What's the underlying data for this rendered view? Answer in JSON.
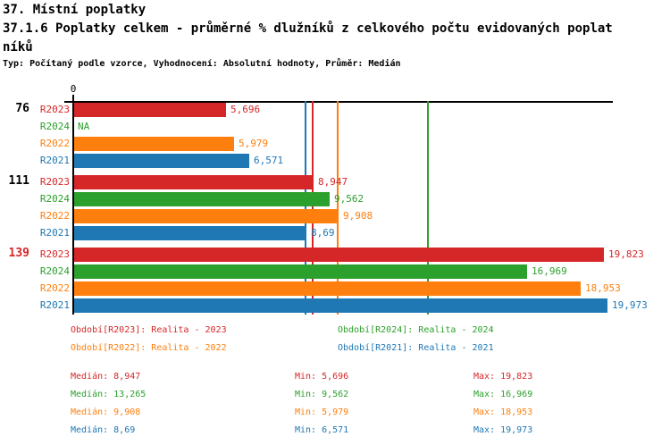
{
  "header": {
    "line1": "37. Místní poplatky",
    "line2": "37.1.6 Poplatky celkem - průměrné % dlužníků z celkového počtu evidovaných poplat",
    "line3": "níků",
    "meta": "Typ: Počítaný podle vzorce, Vyhodnocení: Absolutní hodnoty, Průměr: Medián"
  },
  "colors": {
    "R2023": "#d62728",
    "R2024": "#2ca02c",
    "R2022": "#ff7f0e",
    "R2021": "#1f77b4",
    "axis": "#000000",
    "group_label": "#000000",
    "group_label_highlight": "#d62728"
  },
  "chart_data": {
    "type": "bar",
    "orientation": "horizontal",
    "title": "37.1.6 Poplatky celkem - průměrné % dlužníků z celkového počtu evidovaných poplatníků",
    "xlabel": "",
    "ylabel": "",
    "xlim": [
      0,
      20.1
    ],
    "x_origin_tick_label": "0",
    "grid": false,
    "missing_value_label": "NA",
    "series_order": [
      "R2023",
      "R2024",
      "R2022",
      "R2021"
    ],
    "groups": [
      {
        "label": "76",
        "highlight": false,
        "bars": [
          {
            "series": "R2023",
            "value": 5.696,
            "value_label": "5,696"
          },
          {
            "series": "R2024",
            "value": null,
            "value_label": "NA"
          },
          {
            "series": "R2022",
            "value": 5.979,
            "value_label": "5,979"
          },
          {
            "series": "R2021",
            "value": 6.571,
            "value_label": "6,571"
          }
        ]
      },
      {
        "label": "111",
        "highlight": false,
        "bars": [
          {
            "series": "R2023",
            "value": 8.947,
            "value_label": "8,947"
          },
          {
            "series": "R2024",
            "value": 9.562,
            "value_label": "9,562"
          },
          {
            "series": "R2022",
            "value": 9.908,
            "value_label": "9,908"
          },
          {
            "series": "R2021",
            "value": 8.69,
            "value_label": "8,69"
          }
        ]
      },
      {
        "label": "139",
        "highlight": true,
        "bars": [
          {
            "series": "R2023",
            "value": 19.823,
            "value_label": "19,823"
          },
          {
            "series": "R2024",
            "value": 16.969,
            "value_label": "16,969"
          },
          {
            "series": "R2022",
            "value": 18.953,
            "value_label": "18,953"
          },
          {
            "series": "R2021",
            "value": 19.973,
            "value_label": "19,973"
          }
        ]
      }
    ],
    "median_lines": [
      {
        "series": "R2023",
        "value": 8.947
      },
      {
        "series": "R2024",
        "value": 13.265
      },
      {
        "series": "R2022",
        "value": 9.908
      },
      {
        "series": "R2021",
        "value": 8.69
      }
    ]
  },
  "legend": [
    {
      "series": "R2023",
      "label": "Období[R2023]: Realita - 2023"
    },
    {
      "series": "R2024",
      "label": "Období[R2024]: Realita - 2024"
    },
    {
      "series": "R2022",
      "label": "Období[R2022]: Realita - 2022"
    },
    {
      "series": "R2021",
      "label": "Období[R2021]: Realita - 2021"
    }
  ],
  "stats": [
    {
      "series": "R2023",
      "median": "Medián: 8,947",
      "min": "Min: 5,696",
      "max": "Max: 19,823"
    },
    {
      "series": "R2024",
      "median": "Medián: 13,265",
      "min": "Min: 9,562",
      "max": "Max: 16,969"
    },
    {
      "series": "R2022",
      "median": "Medián: 9,908",
      "min": "Min: 5,979",
      "max": "Max: 18,953"
    },
    {
      "series": "R2021",
      "median": "Medián: 8,69",
      "min": "Min: 6,571",
      "max": "Max: 19,973"
    }
  ]
}
